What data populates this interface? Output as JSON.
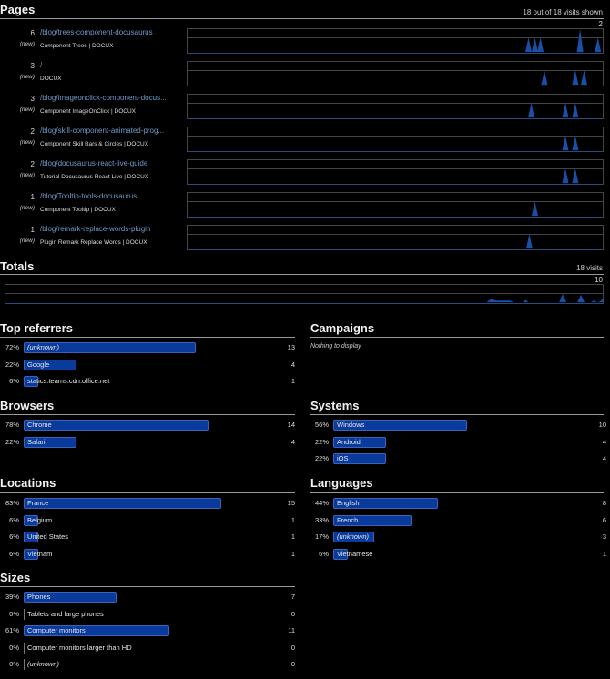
{
  "pages": {
    "title": "Pages",
    "meta": "18 out of 18 visits shown",
    "spark_max": "2",
    "items": [
      {
        "count": "6",
        "badge": "(new)",
        "path": "/blog/trees-component-docusaurus",
        "title": "Component Trees | DOCUX",
        "peaks": [
          [
            0.86,
            1
          ],
          [
            0.876,
            1
          ],
          [
            0.89,
            1
          ],
          [
            0.99,
            2
          ],
          [
            1.035,
            1
          ]
        ]
      },
      {
        "count": "3",
        "badge": "(new)",
        "path": "/",
        "title": "DOCUX",
        "peaks": [
          [
            0.9,
            1
          ],
          [
            0.978,
            1
          ],
          [
            1.0,
            1
          ]
        ]
      },
      {
        "count": "3",
        "badge": "(new)",
        "path": "/blog/imageonclick-component-docus...",
        "title": "Component ImageOnClick | DOCUX",
        "peaks": [
          [
            0.867,
            1
          ],
          [
            0.953,
            1
          ],
          [
            0.978,
            1
          ]
        ]
      },
      {
        "count": "2",
        "badge": "(new)",
        "path": "/blog/skill-component-animated-prog...",
        "title": "Component Skill Bars & Circles | DOCUX",
        "peaks": [
          [
            0.953,
            1
          ],
          [
            0.978,
            1
          ]
        ]
      },
      {
        "count": "2",
        "badge": "(new)",
        "path": "/blog/docusaurus-react-live-guide",
        "title": "Tutorial Docusaurus React Live | DOCUX",
        "peaks": [
          [
            0.953,
            1
          ],
          [
            0.978,
            1
          ]
        ]
      },
      {
        "count": "1",
        "badge": "(new)",
        "path": "/blog/Tooltip-tools-docusaurus",
        "title": "Component Tooltip | DOCUX",
        "peaks": [
          [
            0.876,
            1
          ]
        ]
      },
      {
        "count": "1",
        "badge": "(new)",
        "path": "/blog/remark-replace-words-plugin",
        "title": "Plugin Remark Replace Words | DOCUX",
        "peaks": [
          [
            0.862,
            1
          ]
        ]
      }
    ]
  },
  "totals": {
    "title": "Totals",
    "meta": "18 visits",
    "spark_max": "10"
  },
  "referrers": {
    "title": "Top referrers",
    "items": [
      {
        "pct": "72%",
        "label": "(unknown)",
        "italic": true,
        "count": "13",
        "ratio": 0.72
      },
      {
        "pct": "22%",
        "label": "Google",
        "italic": false,
        "count": "4",
        "ratio": 0.22
      },
      {
        "pct": "6%",
        "label": "statics.teams.cdn.office.net",
        "italic": false,
        "count": "1",
        "ratio": 0.06
      }
    ]
  },
  "campaigns": {
    "title": "Campaigns",
    "empty": "Nothing to display"
  },
  "browsers": {
    "title": "Browsers",
    "items": [
      {
        "pct": "78%",
        "label": "Chrome",
        "count": "14",
        "ratio": 0.78
      },
      {
        "pct": "22%",
        "label": "Safari",
        "count": "4",
        "ratio": 0.22
      }
    ]
  },
  "systems": {
    "title": "Systems",
    "items": [
      {
        "pct": "56%",
        "label": "Windows",
        "count": "10",
        "ratio": 0.56
      },
      {
        "pct": "22%",
        "label": "Android",
        "count": "4",
        "ratio": 0.22
      },
      {
        "pct": "22%",
        "label": "iOS",
        "count": "4",
        "ratio": 0.22
      }
    ]
  },
  "locations": {
    "title": "Locations",
    "items": [
      {
        "pct": "83%",
        "label": "France",
        "count": "15",
        "ratio": 0.83
      },
      {
        "pct": "6%",
        "label": "Belgium",
        "count": "1",
        "ratio": 0.06
      },
      {
        "pct": "6%",
        "label": "United States",
        "count": "1",
        "ratio": 0.06
      },
      {
        "pct": "6%",
        "label": "Vietnam",
        "count": "1",
        "ratio": 0.06
      }
    ]
  },
  "languages": {
    "title": "Languages",
    "items": [
      {
        "pct": "44%",
        "label": "English",
        "count": "8",
        "ratio": 0.44
      },
      {
        "pct": "33%",
        "label": "French",
        "count": "6",
        "ratio": 0.33
      },
      {
        "pct": "17%",
        "label": "(unknown)",
        "italic": true,
        "count": "3",
        "ratio": 0.17
      },
      {
        "pct": "6%",
        "label": "Vietnamese",
        "count": "1",
        "ratio": 0.06
      }
    ]
  },
  "sizes": {
    "title": "Sizes",
    "items": [
      {
        "pct": "39%",
        "label": "Phones",
        "count": "7",
        "ratio": 0.39
      },
      {
        "pct": "0%",
        "label": "Tablets and large phones",
        "count": "0",
        "ratio": 0
      },
      {
        "pct": "61%",
        "label": "Computer monitors",
        "count": "11",
        "ratio": 0.61
      },
      {
        "pct": "0%",
        "label": "Computer monitors larger than HD",
        "count": "0",
        "ratio": 0
      },
      {
        "pct": "0%",
        "label": "(unknown)",
        "italic": true,
        "count": "0",
        "ratio": 0
      }
    ]
  },
  "colors": {
    "background": "#000000",
    "bar_fill": "#0a3a9c",
    "bar_border": "#3a64b8",
    "link": "#6e9ac8",
    "spark_fill": "#1a4fa8"
  }
}
